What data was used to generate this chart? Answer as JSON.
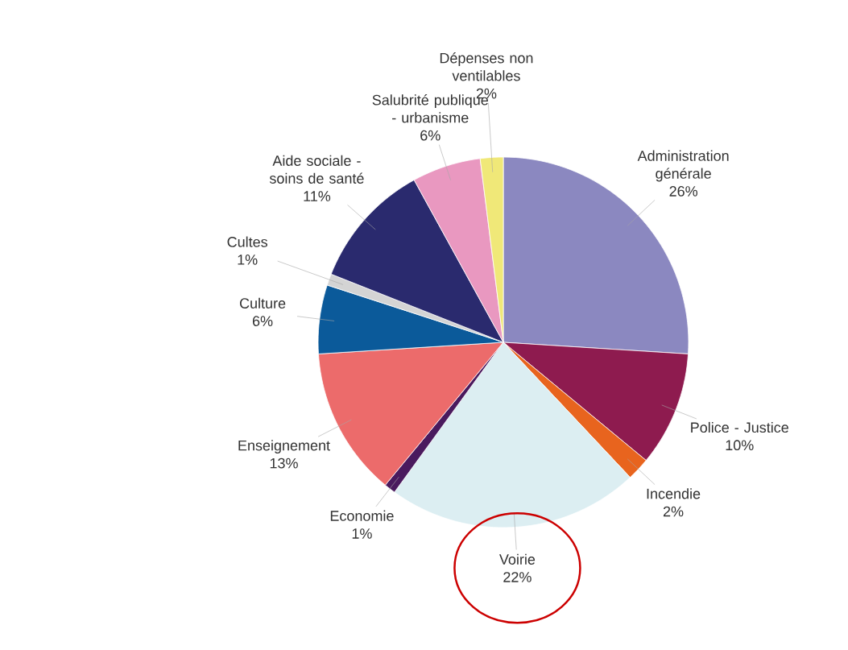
{
  "chart_data": {
    "type": "pie",
    "categories": [
      "Administration générale",
      "Police - Justice",
      "Incendie",
      "Voirie",
      "Economie",
      "Enseignement",
      "Culture",
      "Cultes",
      "Aide sociale - soins de santé",
      "Salubrité publique - urbanisme",
      "Dépenses non ventilables"
    ],
    "values": [
      26,
      10,
      2,
      22,
      1,
      13,
      6,
      1,
      11,
      6,
      2
    ],
    "value_labels": [
      "26%",
      "10%",
      "2%",
      "22%",
      "1%",
      "13%",
      "6%",
      "1%",
      "11%",
      "6%",
      "2%"
    ],
    "colors": [
      "#8b88c0",
      "#8e1b4f",
      "#e8641e",
      "#dceef2",
      "#4a1a5e",
      "#ec6b6b",
      "#0b5a9a",
      "#d4d4d4",
      "#2a2a6e",
      "#e998c0",
      "#f0e878"
    ]
  }
}
